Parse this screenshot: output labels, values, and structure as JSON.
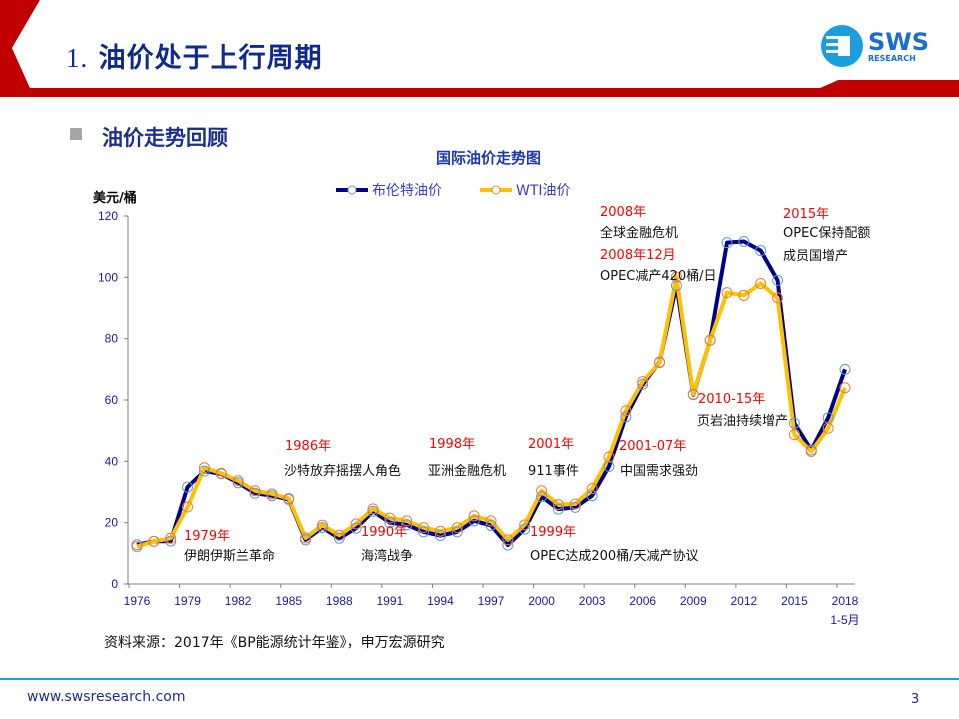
{
  "header": {
    "number": "1.",
    "title": "油价处于上行周期",
    "logo_text": "SWS",
    "logo_sub": "RESEARCH",
    "accent": "#c00000"
  },
  "section": {
    "title": "油价走势回顾"
  },
  "chart_data": {
    "type": "line",
    "title": "国际油价走势图",
    "ylabel": "美元/桶",
    "xlabel": "",
    "ylim": [
      0,
      120
    ],
    "yticks": [
      0,
      20,
      40,
      60,
      80,
      100,
      120
    ],
    "x": [
      1976,
      1977,
      1978,
      1979,
      1980,
      1981,
      1982,
      1983,
      1984,
      1985,
      1986,
      1987,
      1988,
      1989,
      1990,
      1991,
      1992,
      1993,
      1994,
      1995,
      1996,
      1997,
      1998,
      1999,
      2000,
      2001,
      2002,
      2003,
      2004,
      2005,
      2006,
      2007,
      2008,
      2009,
      2010,
      2011,
      2012,
      2013,
      2014,
      2015,
      2016,
      2017,
      2018
    ],
    "xticks": [
      "1976",
      "1979",
      "1982",
      "1985",
      "1988",
      "1991",
      "1994",
      "1997",
      "2000",
      "2003",
      "2006",
      "2009",
      "2012",
      "2015",
      "2018"
    ],
    "xtick_note": "1-5月",
    "legend": "top",
    "grid": false,
    "series": [
      {
        "name": "布伦特油价",
        "color": "#00008b",
        "marker": "#5b9bd5",
        "values": [
          12.8,
          13.9,
          14.0,
          31.6,
          36.8,
          35.9,
          33.0,
          29.6,
          28.8,
          27.6,
          14.4,
          18.4,
          14.9,
          18.2,
          23.7,
          20.0,
          19.3,
          17.0,
          15.8,
          17.0,
          20.6,
          19.1,
          12.7,
          17.9,
          28.5,
          24.4,
          25.0,
          28.8,
          38.3,
          54.5,
          65.1,
          72.4,
          97.3,
          61.7,
          79.5,
          111.3,
          111.7,
          108.7,
          99.0,
          52.4,
          43.7,
          54.2,
          70.0
        ]
      },
      {
        "name": "WTI油价",
        "color": "#ffc000",
        "marker": "#ed7d31",
        "values": [
          12.2,
          13.9,
          14.9,
          25.1,
          37.9,
          36.1,
          33.7,
          30.4,
          29.4,
          27.9,
          15.0,
          19.2,
          15.9,
          19.6,
          24.5,
          21.5,
          20.6,
          18.4,
          17.2,
          18.4,
          22.2,
          20.6,
          14.4,
          19.3,
          30.4,
          25.9,
          26.1,
          31.1,
          41.4,
          56.5,
          66.0,
          72.2,
          100.1,
          61.9,
          79.5,
          95.0,
          94.1,
          98.0,
          93.3,
          48.7,
          43.2,
          50.8,
          64.0
        ]
      }
    ],
    "annotations": [
      {
        "year": "1979年",
        "text": "伊朗伊斯兰革命"
      },
      {
        "year": "1986年",
        "text": "沙特放弃摇摆人角色"
      },
      {
        "year": "1990年",
        "text": "海湾战争"
      },
      {
        "year": "1998年",
        "text": "亚洲金融危机"
      },
      {
        "year": "2001年",
        "text": "911事件"
      },
      {
        "year": "1999年",
        "text": "OPEC达成200桶/天减产协议"
      },
      {
        "year": "2001-07年",
        "text": "中国需求强劲"
      },
      {
        "year": "2008年",
        "text": "全球金融危机"
      },
      {
        "year": "2008年12月",
        "text": "OPEC减产420桶/日"
      },
      {
        "year": "2010-15年",
        "text": "页岩油持续增产"
      },
      {
        "year": "2015年",
        "text": "OPEC保持配额",
        "text2": "成员国增产"
      }
    ]
  },
  "footer": {
    "source": "资料来源：2017年《BP能源统计年鉴》，申万宏源研究",
    "url": "www.swsresearch.com",
    "page": "3"
  }
}
